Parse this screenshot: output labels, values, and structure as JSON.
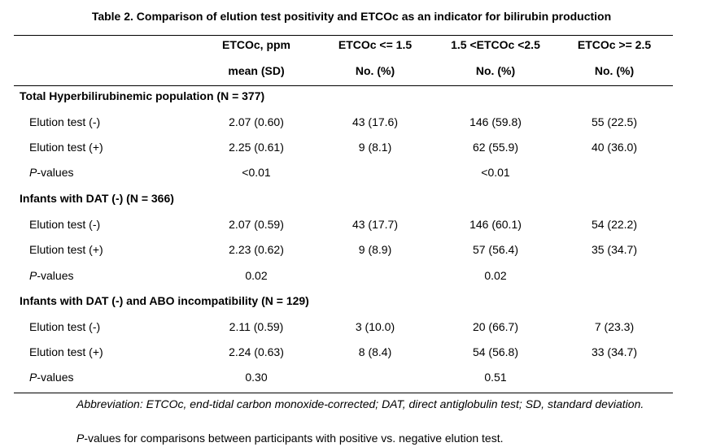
{
  "title": "Table 2. Comparison of elution test positivity and ETCOc as an indicator for bilirubin production",
  "columns": [
    {
      "line1": "ETCOc, ppm",
      "line2": "mean (SD)"
    },
    {
      "line1": "ETCOc <= 1.5",
      "line2": "No. (%)"
    },
    {
      "line1": "1.5 <ETCOc <2.5",
      "line2": "No. (%)"
    },
    {
      "line1": "ETCOc >= 2.5",
      "line2": "No. (%)"
    }
  ],
  "sections": [
    {
      "heading": "Total Hyperbilirubinemic population (N = 377)",
      "rows": [
        {
          "label": "Elution test (-)",
          "values": [
            "2.07 (0.60)",
            "43 (17.6)",
            "146 (59.8)",
            "55 (22.5)"
          ]
        },
        {
          "label": "Elution test (+)",
          "values": [
            "2.25 (0.61)",
            "9 (8.1)",
            "62 (55.9)",
            "40 (36.0)"
          ]
        }
      ],
      "pvalues": {
        "p": "P",
        "suffix": "-values",
        "mean": "<0.01",
        "dist": "<0.01"
      }
    },
    {
      "heading": "Infants with DAT (-) (N = 366)",
      "rows": [
        {
          "label": "Elution test (-)",
          "values": [
            "2.07 (0.59)",
            "43 (17.7)",
            "146 (60.1)",
            "54 (22.2)"
          ]
        },
        {
          "label": "Elution test (+)",
          "values": [
            "2.23 (0.62)",
            "9 (8.9)",
            "57 (56.4)",
            "35 (34.7)"
          ]
        }
      ],
      "pvalues": {
        "p": "P",
        "suffix": "-values",
        "mean": "0.02",
        "dist": "0.02"
      }
    },
    {
      "heading": "Infants with DAT (-) and ABO incompatibility (N = 129)",
      "rows": [
        {
          "label": "Elution test (-)",
          "values": [
            "2.11 (0.59)",
            "3 (10.0)",
            "20 (66.7)",
            "7 (23.3)"
          ]
        },
        {
          "label": "Elution test (+)",
          "values": [
            "2.24 (0.63)",
            "8 (8.4)",
            "54 (56.8)",
            "33 (34.7)"
          ]
        }
      ],
      "pvalues": {
        "p": "P",
        "suffix": "-values",
        "mean": "0.30",
        "dist": "0.51"
      }
    }
  ],
  "footnotes": {
    "abbreviation": "Abbreviation: ETCOc, end-tidal carbon monoxide-corrected; DAT, direct antiglobulin test; SD, standard deviation.",
    "pnote_p": "P",
    "pnote_rest": "-values for comparisons between participants with positive vs. negative elution test."
  }
}
